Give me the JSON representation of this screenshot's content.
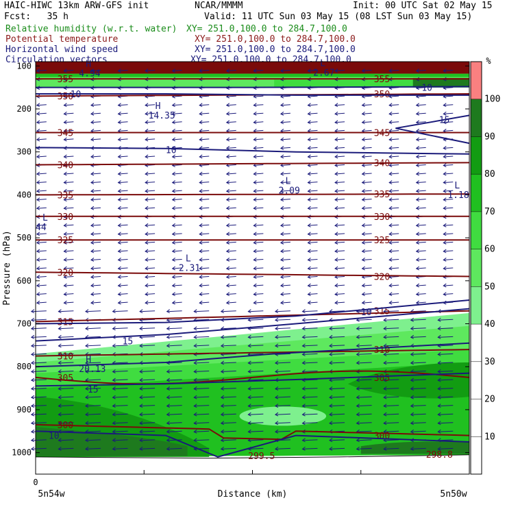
{
  "header": {
    "left_line1": "HAIC-HIWC 13km ARW-GFS init",
    "center_line1": "NCAR/MMMM",
    "right_line1": "Init: 00 UTC Sat 02 May 15",
    "left_line2": "Fcst:   35 h",
    "right_line2": "Valid: 11 UTC Sun 03 May 15 (08 LST Sun 03 May 15)",
    "legend": [
      {
        "label": "Relative humidity (w.r.t. water)",
        "xy": "XY= 251.0,100.0 to 284.7,100.0",
        "color": "#1a8c1a"
      },
      {
        "label": "Potential temperature",
        "xy": "XY= 251.0,100.0 to 284.7,100.0",
        "color": "#8b1a1a"
      },
      {
        "label": "Horizontal wind speed",
        "xy": "XY= 251.0,100.0 to 284.7,100.0",
        "color": "#1a1a7a"
      },
      {
        "label": "Circulation vectors",
        "xy": "XY= 251.0,100.0 to 284.7,100.0",
        "color": "#1a1a7a"
      }
    ]
  },
  "colorbar": {
    "unit": "%",
    "ticks": [
      "100",
      "90",
      "80",
      "70",
      "60",
      "50",
      "40",
      "30",
      "20",
      "10"
    ],
    "bands": [
      {
        "from": 100,
        "to": 110,
        "color": "#fa8080"
      },
      {
        "from": 90,
        "to": 100,
        "color": "#1e7a1e"
      },
      {
        "from": 80,
        "to": 90,
        "color": "#129c12"
      },
      {
        "from": 70,
        "to": 80,
        "color": "#20c020"
      },
      {
        "from": 60,
        "to": 70,
        "color": "#40dc40"
      },
      {
        "from": 50,
        "to": 60,
        "color": "#5ee85e"
      },
      {
        "from": 40,
        "to": 50,
        "color": "#7ef08e"
      },
      {
        "from": 0,
        "to": 40,
        "color": "#ffffff"
      }
    ]
  },
  "chart_data": {
    "type": "cross-section",
    "ylabel": "Pressure (hPa)",
    "xlabel": "Distance (km)",
    "x_start_label": "5n54w",
    "x_end_label": "5n50w",
    "x_zero_label": "0",
    "y_ticks": [
      100,
      200,
      300,
      400,
      500,
      600,
      700,
      800,
      900,
      1000
    ],
    "ylim": [
      1050,
      90
    ],
    "theta_contours": [
      {
        "value": 355,
        "label": "355",
        "p_left": 130,
        "p_right": 130
      },
      {
        "value": 350,
        "label": "350",
        "p_left": 170,
        "p_right": 165
      },
      {
        "value": 345,
        "label": "345",
        "p_left": 255,
        "p_right": 255
      },
      {
        "value": 340,
        "label": "340",
        "p_left": 330,
        "p_right": 325
      },
      {
        "value": 335,
        "label": "335",
        "p_left": 400,
        "p_right": 398
      },
      {
        "value": 330,
        "label": "330",
        "p_left": 450,
        "p_right": 450
      },
      {
        "value": 325,
        "label": "325",
        "p_left": 505,
        "p_right": 505
      },
      {
        "value": 320,
        "label": "320",
        "p_left": 580,
        "p_right": 590
      },
      {
        "value": 315,
        "label": "315",
        "p_left": 695,
        "p_right": 670
      },
      {
        "value": 310,
        "label": "310",
        "p_left": 775,
        "p_right": 760
      },
      {
        "value": 305,
        "label": "305",
        "p_left": 825,
        "p_right": 825
      },
      {
        "value": 300,
        "label": "300",
        "p_left": 935,
        "p_right": 960
      },
      {
        "value": 299.5,
        "label": "299.5",
        "p_left": 1010,
        "p_right": 1005
      },
      {
        "value": 298.8,
        "label": "298.8",
        "p_left": 1010,
        "p_right": 1005
      }
    ],
    "wind_contours": [
      {
        "value": 10,
        "label": "10"
      },
      {
        "value": 15,
        "label": "15"
      }
    ],
    "extrema_labels": [
      {
        "type": "H",
        "value": "14.35"
      },
      {
        "type": "L",
        "value": "2.09"
      },
      {
        "type": "L",
        "value": "1.18"
      },
      {
        "type": "L",
        "value": "2.31"
      },
      {
        "type": "H",
        "value": "20.13"
      },
      {
        "type": "L",
        "value": "2.67"
      },
      {
        "type": "H",
        "value": "4.94"
      },
      {
        "type": "L",
        "value": "44"
      }
    ]
  }
}
